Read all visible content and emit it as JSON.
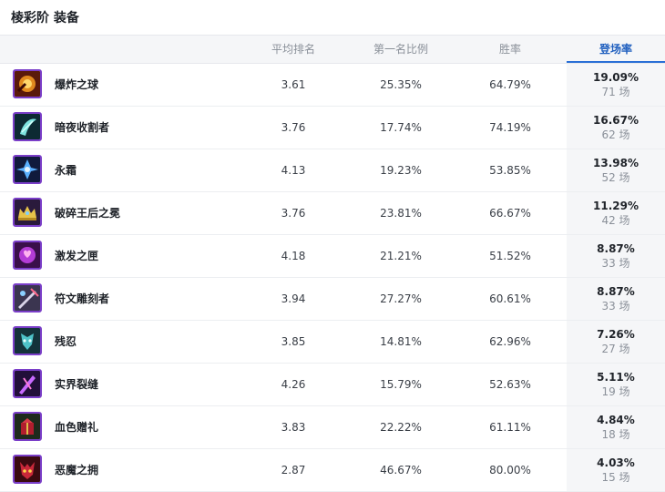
{
  "panel": {
    "title": "棱彩阶 装备"
  },
  "columns": {
    "avg_rank": "平均排名",
    "first_rate": "第一名比例",
    "win_rate": "胜率",
    "pick_rate": "登场率"
  },
  "accent_color": "#2a6fd6",
  "rows": [
    {
      "name": "爆炸之球",
      "icon": "explosive-orb-icon",
      "avg_rank": "3.61",
      "first_rate": "25.35%",
      "win_rate": "64.79%",
      "pick_rate": "19.09%",
      "games": "71 场"
    },
    {
      "name": "暗夜收割者",
      "icon": "night-harvester-icon",
      "avg_rank": "3.76",
      "first_rate": "17.74%",
      "win_rate": "74.19%",
      "pick_rate": "16.67%",
      "games": "62 场"
    },
    {
      "name": "永霜",
      "icon": "everfrost-icon",
      "avg_rank": "4.13",
      "first_rate": "19.23%",
      "win_rate": "53.85%",
      "pick_rate": "13.98%",
      "games": "52 场"
    },
    {
      "name": "破碎王后之冕",
      "icon": "shattered-queens-crown-icon",
      "avg_rank": "3.76",
      "first_rate": "23.81%",
      "win_rate": "66.67%",
      "pick_rate": "11.29%",
      "games": "42 场"
    },
    {
      "name": "激发之匣",
      "icon": "exciting-box-icon",
      "avg_rank": "4.18",
      "first_rate": "21.21%",
      "win_rate": "51.52%",
      "pick_rate": "8.87%",
      "games": "33 场"
    },
    {
      "name": "符文雕刻者",
      "icon": "rune-carver-icon",
      "avg_rank": "3.94",
      "first_rate": "27.27%",
      "win_rate": "60.61%",
      "pick_rate": "8.87%",
      "games": "33 场"
    },
    {
      "name": "残忍",
      "icon": "cruelty-icon",
      "avg_rank": "3.85",
      "first_rate": "14.81%",
      "win_rate": "62.96%",
      "pick_rate": "7.26%",
      "games": "27 场"
    },
    {
      "name": "实界裂缝",
      "icon": "reality-fracture-icon",
      "avg_rank": "4.26",
      "first_rate": "15.79%",
      "win_rate": "52.63%",
      "pick_rate": "5.11%",
      "games": "19 场"
    },
    {
      "name": "血色赠礼",
      "icon": "crimson-gift-icon",
      "avg_rank": "3.83",
      "first_rate": "22.22%",
      "win_rate": "61.11%",
      "pick_rate": "4.84%",
      "games": "18 场"
    },
    {
      "name": "恶魔之拥",
      "icon": "demonic-embrace-icon",
      "avg_rank": "2.87",
      "first_rate": "46.67%",
      "win_rate": "80.00%",
      "pick_rate": "4.03%",
      "games": "15 场"
    }
  ]
}
